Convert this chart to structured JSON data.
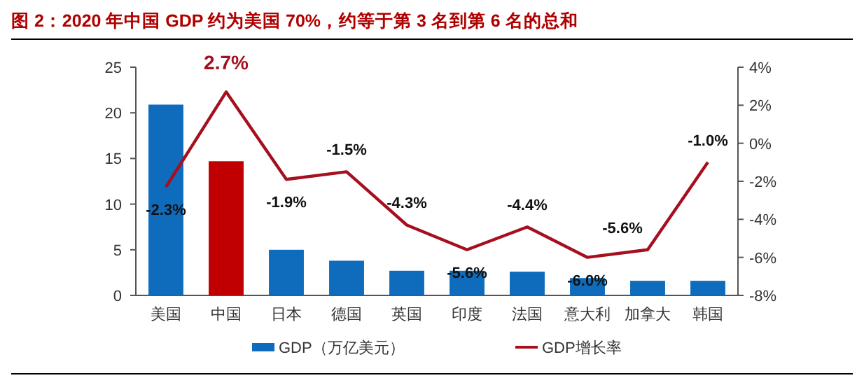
{
  "chart_data": {
    "type": "bar",
    "title": "图 2：2020 年中国 GDP 约为美国 70%，约等于第 3 名到第 6 名的总和",
    "categories": [
      "美国",
      "中国",
      "日本",
      "德国",
      "英国",
      "印度",
      "法国",
      "意大利",
      "加拿大",
      "韩国"
    ],
    "series": [
      {
        "name": "GDP（万亿美元）",
        "color": "#0f6cbd",
        "colors": [
          "#0f6cbd",
          "#c00000",
          "#0f6cbd",
          "#0f6cbd",
          "#0f6cbd",
          "#0f6cbd",
          "#0f6cbd",
          "#0f6cbd",
          "#0f6cbd",
          "#0f6cbd"
        ],
        "values": [
          20.9,
          14.7,
          5.0,
          3.8,
          2.7,
          2.7,
          2.6,
          1.9,
          1.6,
          1.6
        ]
      },
      {
        "name": "GDP增长率",
        "type": "line",
        "axis": "y2",
        "color": "#a50f1e",
        "values": [
          -2.3,
          2.7,
          -1.9,
          -1.5,
          -4.3,
          -5.6,
          -4.4,
          -6.0,
          -5.6,
          -1.0
        ],
        "value_labels": [
          "-2.3%",
          "2.7%",
          "-1.9%",
          "-1.5%",
          "-4.3%",
          "-5.6%",
          "-4.4%",
          "-6.0%",
          "-5.6%",
          "-1.0%"
        ]
      }
    ],
    "ylim": [
      0,
      25
    ],
    "yticks": [
      0,
      5,
      10,
      15,
      20,
      25
    ],
    "y2lim": [
      -8,
      4
    ],
    "y2ticks": [
      {
        "value": -8,
        "label": "-8%"
      },
      {
        "value": -6,
        "label": "-6%"
      },
      {
        "value": -4,
        "label": "-4%"
      },
      {
        "value": -2,
        "label": "-2%"
      },
      {
        "value": 0,
        "label": "0%"
      },
      {
        "value": 2,
        "label": "2%"
      },
      {
        "value": 4,
        "label": "4%"
      }
    ],
    "legend": "bottom"
  }
}
